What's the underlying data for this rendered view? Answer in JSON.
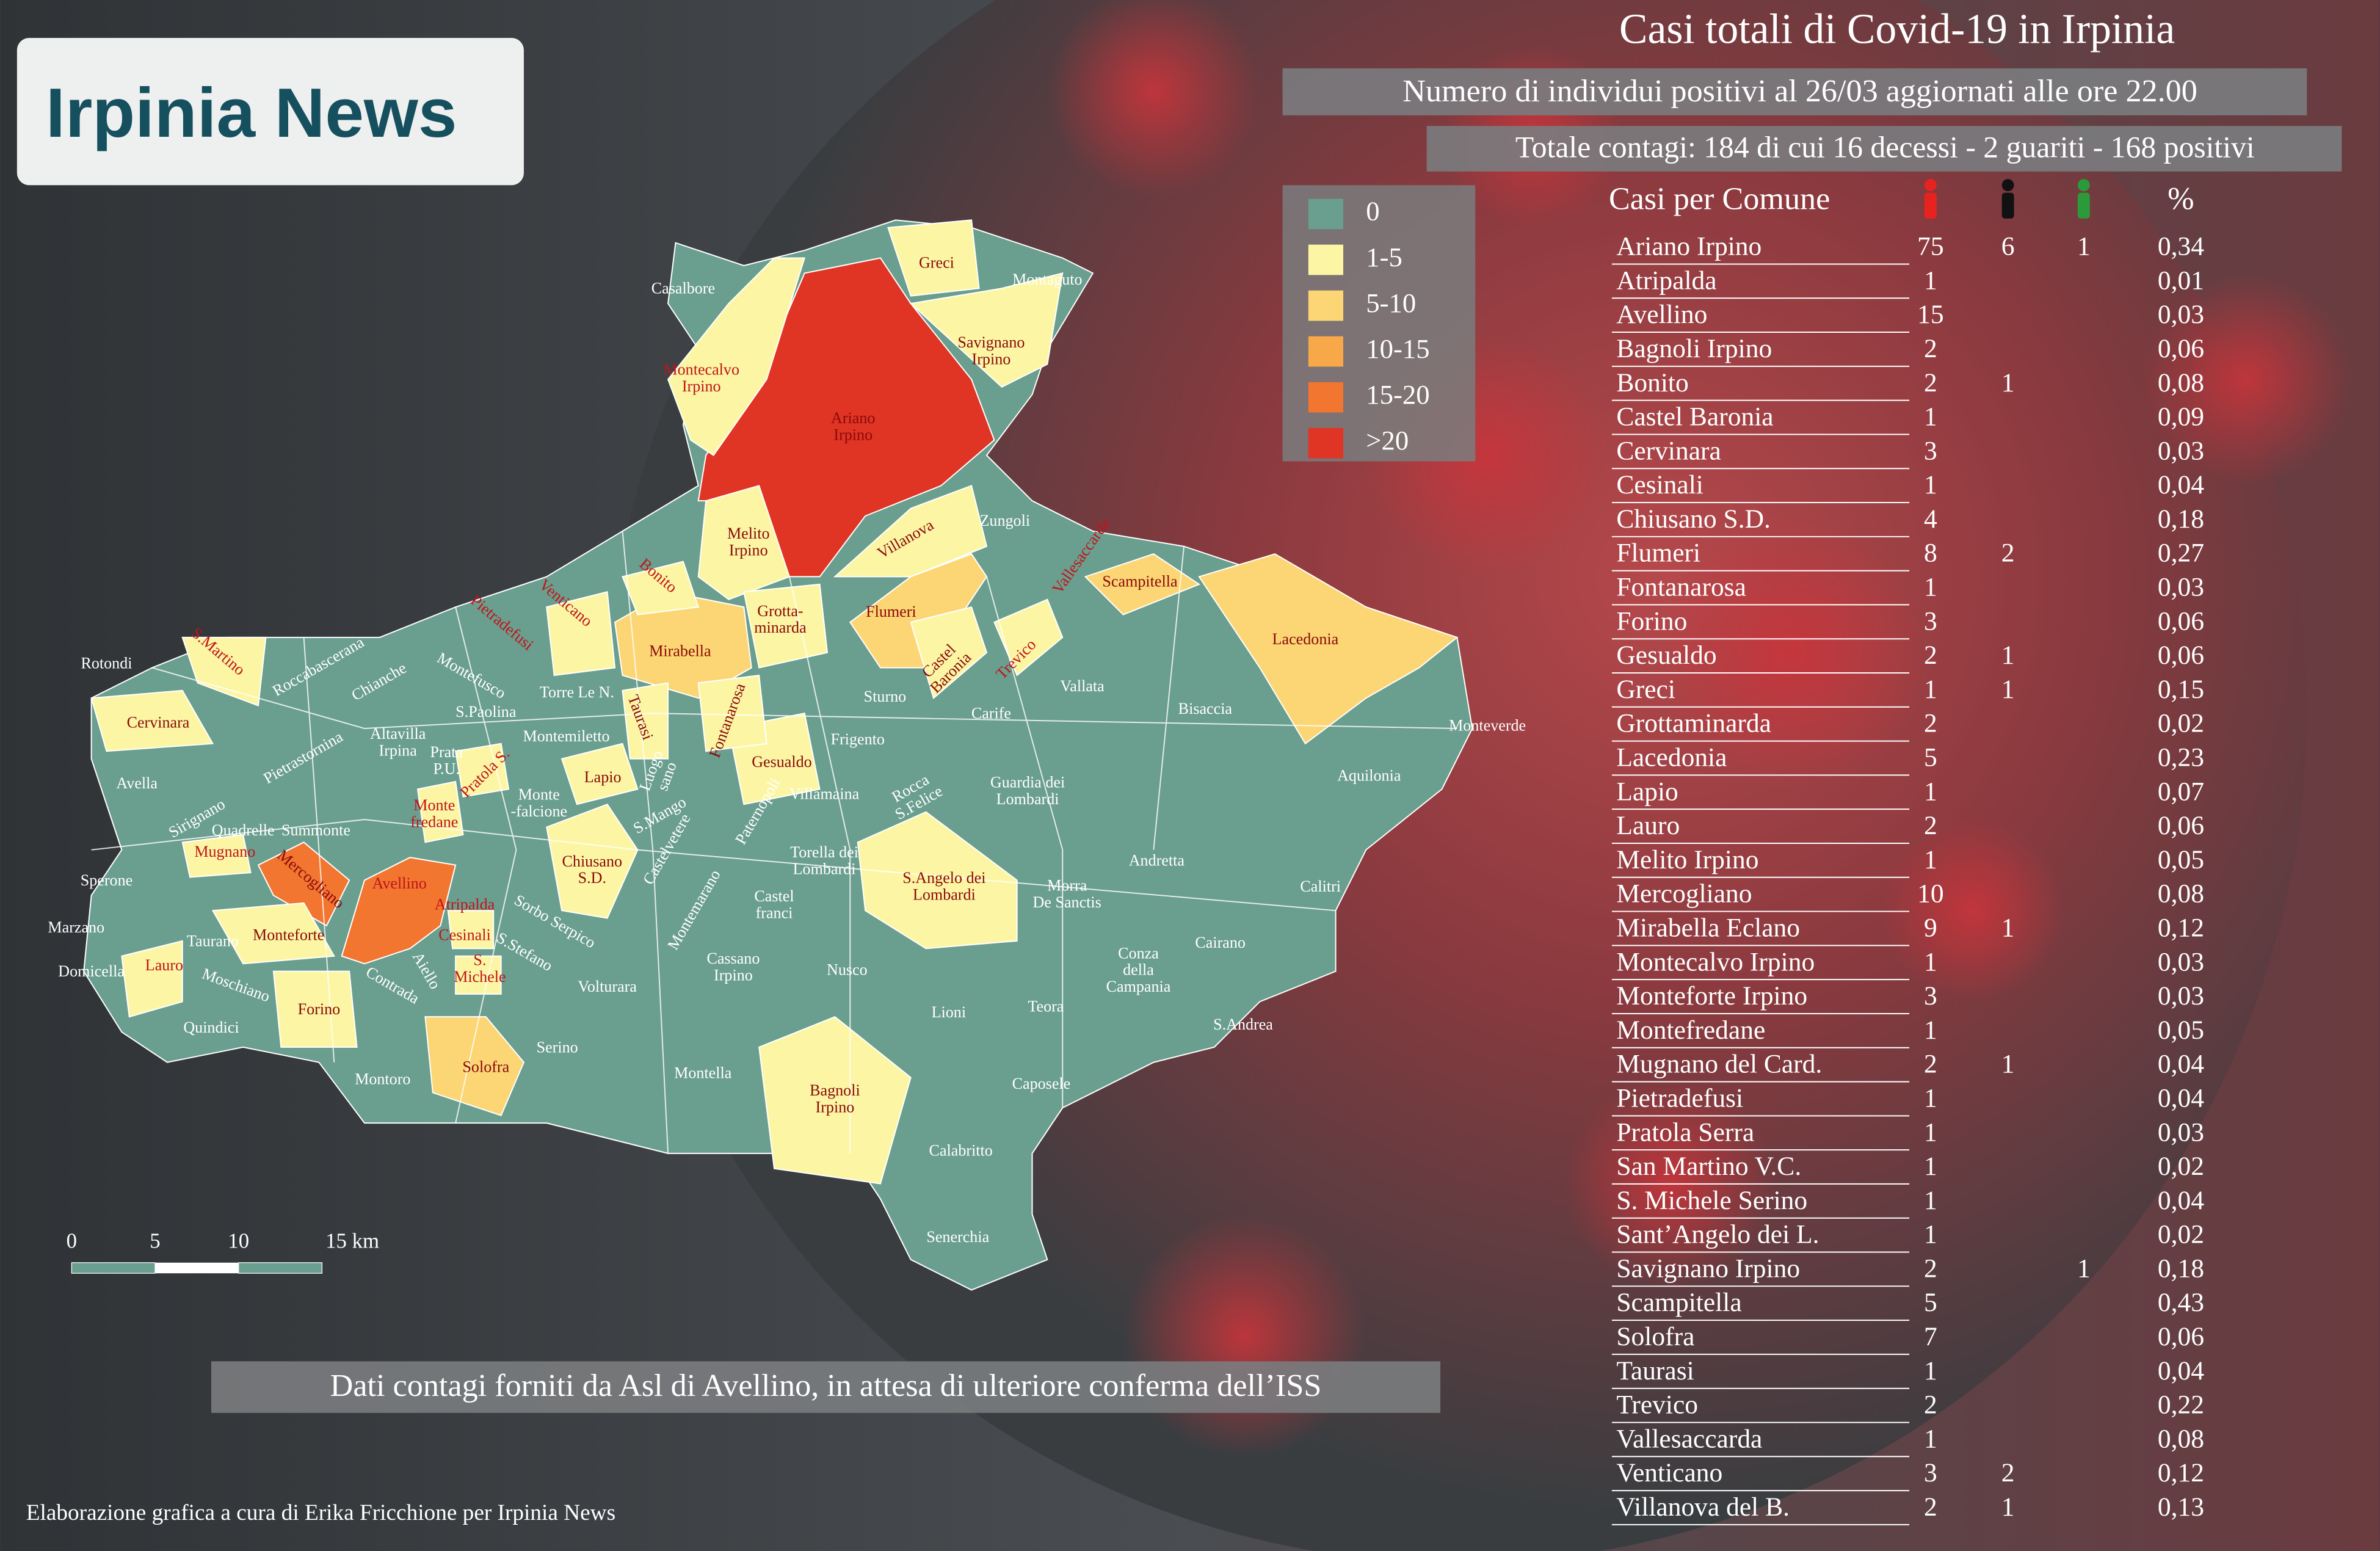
{
  "logo": "Irpinia News",
  "header": {
    "title": "Casi totali di Covid-19 in Irpinia",
    "subtitle": "Numero di individui positivi al 26/03 aggiornati alle ore 22.00",
    "totals": "Totale contagi: 184 di cui 16 decessi - 2 guariti - 168 positivi"
  },
  "legend": [
    {
      "label": "0",
      "color": "#6a9e8e"
    },
    {
      "label": "1-5",
      "color": "#fcf6a4"
    },
    {
      "label": "5-10",
      "color": "#fcd675"
    },
    {
      "label": "10-15",
      "color": "#f7a848"
    },
    {
      "label": "15-20",
      "color": "#f27530"
    },
    {
      "label": ">20",
      "color": "#e03424"
    }
  ],
  "table": {
    "header": {
      "name": "Casi per Comune",
      "pct": "%"
    },
    "rows": [
      [
        "Ariano Irpino",
        75,
        6,
        1,
        "0,34"
      ],
      [
        "Atripalda",
        1,
        null,
        null,
        "0,01"
      ],
      [
        "Avellino",
        15,
        null,
        null,
        "0,03"
      ],
      [
        "Bagnoli Irpino",
        2,
        null,
        null,
        "0,06"
      ],
      [
        "Bonito",
        2,
        1,
        null,
        "0,08"
      ],
      [
        "Castel Baronia",
        1,
        null,
        null,
        "0,09"
      ],
      [
        "Cervinara",
        3,
        null,
        null,
        "0,03"
      ],
      [
        "Cesinali",
        1,
        null,
        null,
        "0,04"
      ],
      [
        "Chiusano S.D.",
        4,
        null,
        null,
        "0,18"
      ],
      [
        "Flumeri",
        8,
        2,
        null,
        "0,27"
      ],
      [
        "Fontanarosa",
        1,
        null,
        null,
        "0,03"
      ],
      [
        "Forino",
        3,
        null,
        null,
        "0,06"
      ],
      [
        "Gesualdo",
        2,
        1,
        null,
        "0,06"
      ],
      [
        "Greci",
        1,
        1,
        null,
        "0,15"
      ],
      [
        "Grottaminarda",
        2,
        null,
        null,
        "0,02"
      ],
      [
        "Lacedonia",
        5,
        null,
        null,
        "0,23"
      ],
      [
        "Lapio",
        1,
        null,
        null,
        "0,07"
      ],
      [
        "Lauro",
        2,
        null,
        null,
        "0,06"
      ],
      [
        "Melito Irpino",
        1,
        null,
        null,
        "0,05"
      ],
      [
        "Mercogliano",
        10,
        null,
        null,
        "0,08"
      ],
      [
        "Mirabella Eclano",
        9,
        1,
        null,
        "0,12"
      ],
      [
        "Montecalvo Irpino",
        1,
        null,
        null,
        "0,03"
      ],
      [
        "Monteforte Irpino",
        3,
        null,
        null,
        "0,03"
      ],
      [
        "Montefredane",
        1,
        null,
        null,
        "0,05"
      ],
      [
        "Mugnano del Card.",
        2,
        1,
        null,
        "0,04"
      ],
      [
        "Pietradefusi",
        1,
        null,
        null,
        "0,04"
      ],
      [
        "Pratola Serra",
        1,
        null,
        null,
        "0,03"
      ],
      [
        "San Martino V.C.",
        1,
        null,
        null,
        "0,02"
      ],
      [
        "S. Michele Serino",
        1,
        null,
        null,
        "0,04"
      ],
      [
        "Sant’Angelo dei L.",
        1,
        null,
        null,
        "0,02"
      ],
      [
        "Savignano Irpino",
        2,
        null,
        1,
        "0,18"
      ],
      [
        "Scampitella",
        5,
        null,
        null,
        "0,43"
      ],
      [
        "Solofra",
        7,
        null,
        null,
        "0,06"
      ],
      [
        "Taurasi",
        1,
        null,
        null,
        "0,04"
      ],
      [
        "Trevico",
        2,
        null,
        null,
        "0,22"
      ],
      [
        "Vallesaccarda",
        1,
        null,
        null,
        "0,08"
      ],
      [
        "Venticano",
        3,
        2,
        null,
        "0,12"
      ],
      [
        "Villanova del B.",
        2,
        1,
        null,
        "0,13"
      ]
    ]
  },
  "map_labels": [
    [
      "Casalbore"
    ],
    [
      "Greci"
    ],
    [
      "Montaguto"
    ],
    [
      "Montecalvo",
      "Irpino"
    ],
    [
      "Savignano",
      "Irpino"
    ],
    [
      "Ariano",
      "Irpino"
    ],
    [
      "Melito",
      "Irpino"
    ],
    [
      "Villanova"
    ],
    [
      "Zungoli"
    ],
    [
      "Vallesaccarda"
    ],
    [
      "Scampitella"
    ],
    [
      "Flumeri"
    ],
    [
      "Mirabella"
    ],
    [
      "Grotta-",
      "minarda"
    ],
    [
      "Lacedonia"
    ],
    [
      "Castel",
      "Baronia"
    ],
    [
      "Trevico"
    ],
    [
      "Sturno"
    ],
    [
      "Carife"
    ],
    [
      "Vallata"
    ],
    [
      "Bisaccia"
    ],
    [
      "Monteverde"
    ],
    [
      "Aquilonia"
    ],
    [
      "Taurasi"
    ],
    [
      "Fontanarosa"
    ],
    [
      "Gesualdo"
    ],
    [
      "Frigento"
    ],
    [
      "Lapio"
    ],
    [
      "Guardia dei",
      "Lombardi"
    ],
    [
      "Andretta"
    ],
    [
      "Calitri"
    ],
    [
      "S.Angelo dei",
      "Lombardi"
    ],
    [
      "Torella dei",
      "Lombardi"
    ],
    [
      "Morra",
      "De Sanctis"
    ],
    [
      "Chiusano",
      "S.D."
    ],
    [
      "Montemiletto"
    ],
    [
      "Torre Le N."
    ],
    [
      "Cervinara"
    ],
    [
      "Rotondi"
    ],
    [
      "S.Martino"
    ],
    [
      "Avella"
    ],
    [
      "Mugnano"
    ],
    [
      "Mercogliano"
    ],
    [
      "Avellino"
    ],
    [
      "Atripalda"
    ],
    [
      "Monteforte"
    ],
    [
      "Lauro"
    ],
    [
      "Quindici"
    ],
    [
      "Forino"
    ],
    [
      "Solofra"
    ],
    [
      "Montoro"
    ],
    [
      "Serino"
    ],
    [
      "Volturara"
    ],
    [
      "Montella"
    ],
    [
      "Nusco"
    ],
    [
      "Lioni"
    ],
    [
      "Teora"
    ],
    [
      "Caposele"
    ],
    [
      "Bagnoli",
      "Irpino"
    ],
    [
      "Calabritto"
    ],
    [
      "Senerchia"
    ],
    [
      "Conza",
      "della",
      "Campania"
    ],
    [
      "Cairano"
    ],
    [
      "S.Andrea"
    ],
    [
      "Cassano",
      "Irpino"
    ],
    [
      "Montemarano"
    ],
    [
      "Castelvetere"
    ],
    [
      "Paternopoli"
    ],
    [
      "Castel",
      "franci"
    ],
    [
      "Villamaina"
    ],
    [
      "Rocca",
      "S.Felice"
    ],
    [
      "S.Mango"
    ],
    [
      "Pietradefusi"
    ],
    [
      "Venticano"
    ],
    [
      "Bonito"
    ],
    [
      "Pratola S."
    ],
    [
      "Monte",
      "fredane"
    ],
    [
      "Cesinali"
    ],
    [
      "S.",
      "Michele"
    ],
    [
      "Sperone"
    ],
    [
      "Marzano"
    ],
    [
      "Domicella"
    ],
    [
      "Taurano"
    ],
    [
      "Moschiano"
    ],
    [
      "Summonte"
    ],
    [
      "Montefusco"
    ],
    [
      "Pietrastornina"
    ],
    [
      "Altavilla",
      "Irpina"
    ],
    [
      "Prata",
      "P.U."
    ],
    [
      "Chianche"
    ],
    [
      "Roccabascerana"
    ],
    [
      "Sirignano"
    ],
    [
      "Quadrelle"
    ],
    [
      "Contrada"
    ],
    [
      "Aiello"
    ],
    [
      "S.Stefano"
    ],
    [
      "Sorbo Serpico"
    ],
    [
      "S.Paolina"
    ],
    [
      "Monte",
      "-falcione"
    ],
    [
      "Luogo",
      "sano"
    ]
  ],
  "scale": [
    "0",
    "5",
    "10",
    "15 km"
  ],
  "footer": {
    "source": "Dati contagi forniti da Asl di Avellino, in attesa di ulteriore conferma dell’ISS",
    "credit": "Elaborazione grafica a cura di Erika Fricchione per Irpinia News"
  }
}
